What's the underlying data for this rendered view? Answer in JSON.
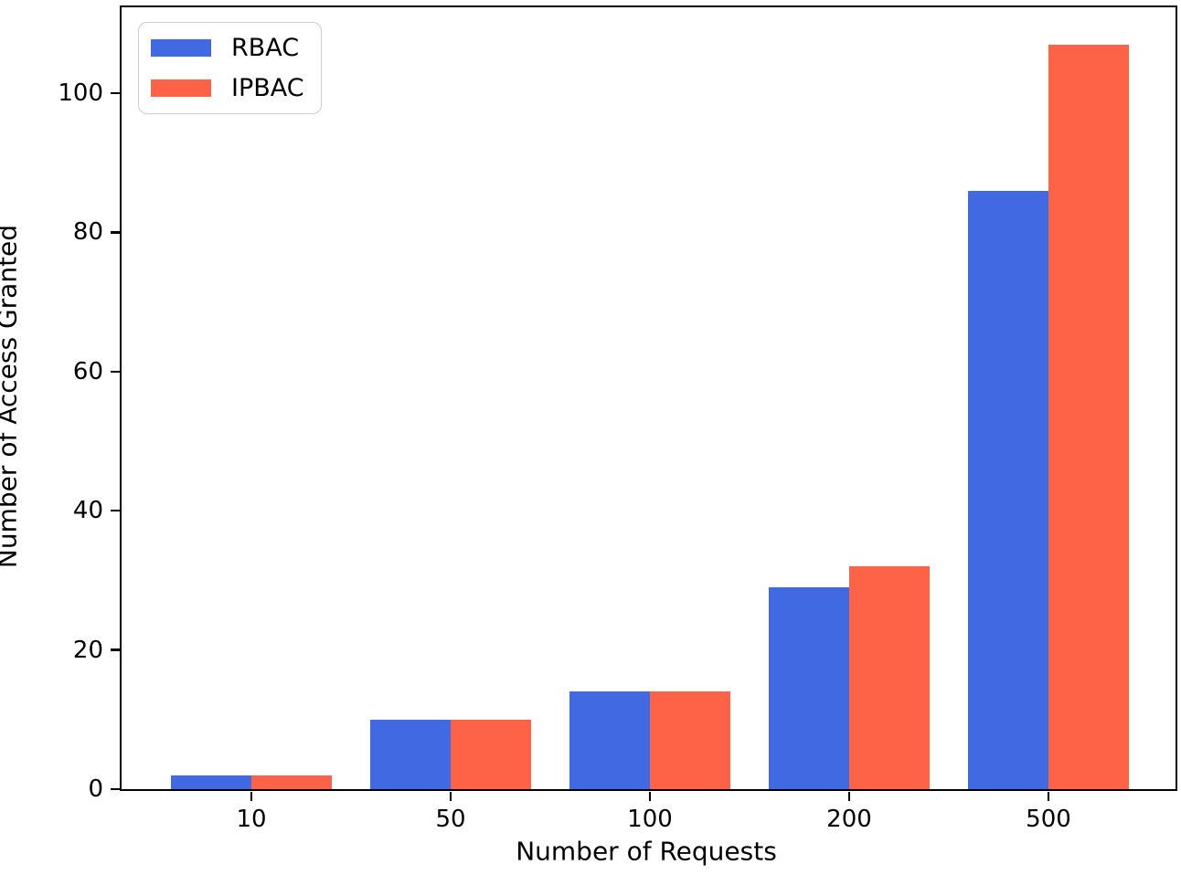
{
  "chart_data": {
    "type": "bar",
    "title": "",
    "xlabel": "Number of Requests",
    "ylabel": "Number of Access Granted",
    "categories": [
      "10",
      "50",
      "100",
      "200",
      "500"
    ],
    "series": [
      {
        "name": "RBAC",
        "color": "#4169E1",
        "values": [
          2,
          10,
          14,
          29,
          86
        ]
      },
      {
        "name": "IPBAC",
        "color": "#FF6347",
        "values": [
          2,
          10,
          14,
          32,
          107
        ]
      }
    ],
    "yticks": [
      0,
      20,
      40,
      60,
      80,
      100
    ],
    "ylim": [
      0,
      112.35
    ],
    "grid": false,
    "legend_position": "upper left",
    "colors": {
      "rbac": "#4169E1",
      "ipbac": "#FF6347",
      "axis": "#000000",
      "legend_border": "#cccccc",
      "background": "#ffffff"
    }
  }
}
